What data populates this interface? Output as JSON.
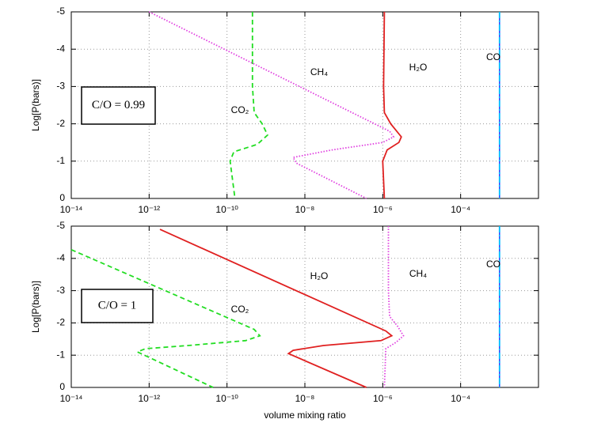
{
  "chart_data": [
    {
      "type": "line",
      "xscale": "log",
      "grid": true,
      "annotation": "C/O = 0.99",
      "ylabel": "Log[P(bars)]",
      "xlim": [
        1e-14,
        0.01
      ],
      "ylim": [
        0,
        -5
      ],
      "xticks": [
        {
          "value": 1e-14,
          "label": "10⁻¹⁴"
        },
        {
          "value": 1e-12,
          "label": "10⁻¹²"
        },
        {
          "value": 1e-10,
          "label": "10⁻¹⁰"
        },
        {
          "value": 1e-08,
          "label": "10⁻⁸"
        },
        {
          "value": 1e-06,
          "label": "10⁻⁶"
        },
        {
          "value": 0.0001,
          "label": "10⁻⁴"
        }
      ],
      "yticks": [
        -5,
        -4,
        -3,
        -2,
        -1,
        0
      ],
      "series": [
        {
          "name": "CO₂",
          "color": "#22dd22",
          "dash": "dashed",
          "x": [
            4.5e-10,
            4.5e-10,
            5e-10,
            8e-10,
            1.1e-09,
            6e-10,
            1.5e-10,
            1.2e-10,
            1.6e-10
          ],
          "values": [
            -5,
            -3,
            -2.3,
            -2.0,
            -1.7,
            -1.45,
            -1.25,
            -1.0,
            0
          ]
        },
        {
          "name": "CH₄",
          "color": "#e040e0",
          "dash": "dotted",
          "x": [
            1e-12,
            1.5e-06,
            1.9e-06,
            1e-06,
            5e-08,
            5e-09,
            6e-09,
            3.8e-07
          ],
          "values": [
            -5,
            -1.8,
            -1.65,
            -1.5,
            -1.3,
            -1.1,
            -0.95,
            0
          ]
        },
        {
          "name": "H₂O",
          "color": "#e02020",
          "dash": "solid",
          "x": [
            1.1e-06,
            1.05e-06,
            1.1e-06,
            1.6e-06,
            3e-06,
            2.6e-06,
            1.3e-06,
            1e-06,
            1.1e-06
          ],
          "values": [
            -5,
            -3,
            -2.3,
            -2.0,
            -1.65,
            -1.5,
            -1.3,
            -1.0,
            0
          ]
        },
        {
          "name": "CO",
          "color": "#00bfff",
          "dash": "dashdot",
          "x": [
            0.001,
            0.001
          ],
          "values": [
            -5,
            0
          ]
        }
      ]
    },
    {
      "type": "line",
      "xscale": "log",
      "grid": true,
      "annotation": "C/O = 1",
      "ylabel": "Log[P(bars)]",
      "xlabel": "volume mixing ratio",
      "xlim": [
        1e-14,
        0.01
      ],
      "ylim": [
        0,
        -5
      ],
      "xticks": [
        {
          "value": 1e-14,
          "label": "10⁻¹⁴"
        },
        {
          "value": 1e-12,
          "label": "10⁻¹²"
        },
        {
          "value": 1e-10,
          "label": "10⁻¹⁰"
        },
        {
          "value": 1e-08,
          "label": "10⁻⁸"
        },
        {
          "value": 1e-06,
          "label": "10⁻⁶"
        },
        {
          "value": 0.0001,
          "label": "10⁻⁴"
        }
      ],
      "yticks": [
        -5,
        -4,
        -3,
        -2,
        -1,
        0
      ],
      "series": [
        {
          "name": "CO₂",
          "color": "#22dd22",
          "dash": "dashed",
          "x": [
            1e-14,
            5e-10,
            7e-10,
            3e-10,
            1e-11,
            8e-13,
            5e-13,
            4.4e-11
          ],
          "values": [
            -4.27,
            -1.8,
            -1.6,
            -1.45,
            -1.3,
            -1.2,
            -1.1,
            0
          ]
        },
        {
          "name": "CH₄",
          "color": "#e040e0",
          "dash": "dotted",
          "x": [
            1.4e-06,
            1.4e-06,
            1.5e-06,
            2.4e-06,
            3.4e-06,
            2.2e-06,
            1.2e-06,
            1.1e-06
          ],
          "values": [
            -5,
            -3,
            -2.2,
            -1.9,
            -1.6,
            -1.4,
            -1.2,
            0
          ]
        },
        {
          "name": "H₂O",
          "color": "#e02020",
          "dash": "solid",
          "x": [
            1.9e-12,
            1.2e-06,
            1.7e-06,
            9e-07,
            3e-08,
            5e-09,
            3.8e-09,
            3.8e-07
          ],
          "values": [
            -4.9,
            -1.75,
            -1.6,
            -1.45,
            -1.3,
            -1.15,
            -1.05,
            0
          ]
        },
        {
          "name": "CO",
          "color": "#00bfff",
          "dash": "dashdot",
          "x": [
            0.001,
            0.001
          ],
          "values": [
            -5,
            0
          ]
        }
      ]
    }
  ]
}
